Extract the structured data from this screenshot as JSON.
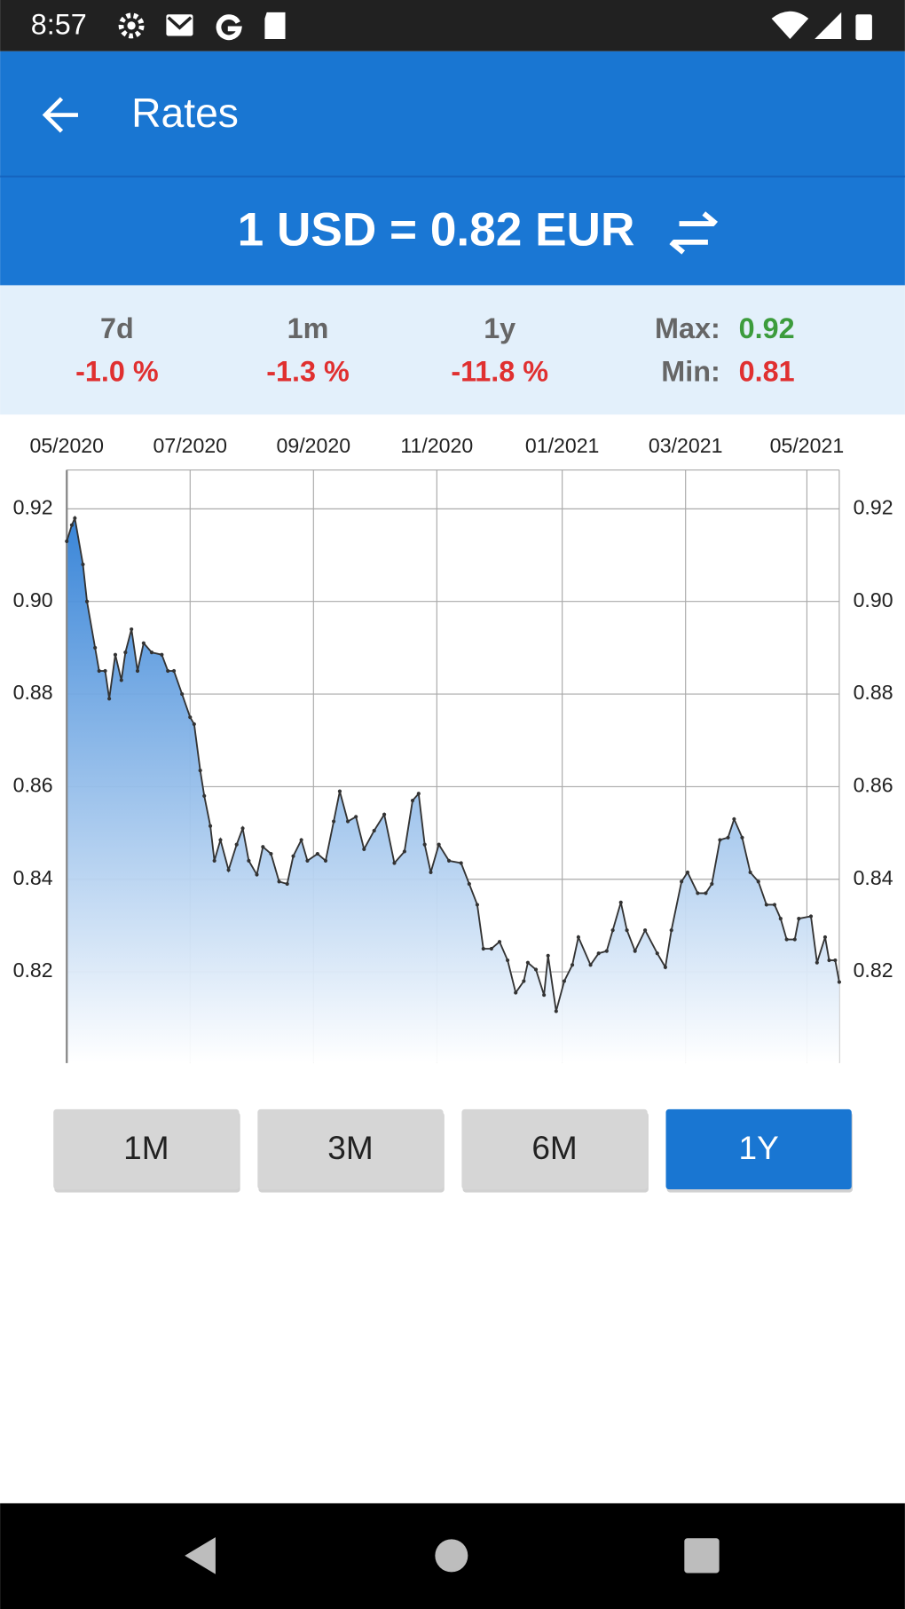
{
  "status_bar": {
    "time": "8:57"
  },
  "app_bar": {
    "title": "Rates"
  },
  "rate": {
    "text": "1 USD = 0.82 EUR"
  },
  "stats": {
    "periods": [
      {
        "label": "7d",
        "change": "-1.0 %"
      },
      {
        "label": "1m",
        "change": "-1.3 %"
      },
      {
        "label": "1y",
        "change": "-11.8 %"
      }
    ],
    "max_label": "Max:",
    "max_value": "0.92",
    "min_label": "Min:",
    "min_value": "0.81"
  },
  "buttons": [
    "1M",
    "3M",
    "6M",
    "1Y"
  ],
  "chart_data": {
    "type": "area",
    "line_color": "#333333",
    "fill_color": "#3a86d8",
    "grid": true,
    "x": [
      0,
      2.5,
      4,
      8,
      10,
      14,
      16,
      19,
      21,
      24,
      27,
      29,
      32,
      35,
      38,
      42,
      47,
      50,
      53,
      57,
      61,
      63,
      66,
      68,
      71,
      73,
      76,
      80,
      84,
      87,
      90,
      94,
      97,
      101,
      105,
      109,
      112,
      116,
      119,
      124,
      128,
      132,
      135,
      139,
      143,
      147,
      152,
      157,
      162,
      167,
      171,
      174,
      177,
      180,
      184,
      189,
      195,
      199,
      203,
      206,
      210,
      214,
      218,
      222,
      226,
      228,
      232,
      236,
      238,
      242,
      246,
      250,
      253,
      259,
      263,
      267,
      270,
      274,
      277,
      281,
      286,
      292,
      296,
      299,
      304,
      307,
      312,
      316,
      319,
      323,
      327,
      330,
      334,
      338,
      342,
      346,
      350,
      353,
      356,
      360,
      362,
      368,
      371,
      375,
      377,
      380,
      382
    ],
    "values": [
      0.913,
      0.9165,
      0.918,
      0.908,
      0.9,
      0.89,
      0.885,
      0.885,
      0.879,
      0.8885,
      0.883,
      0.889,
      0.894,
      0.885,
      0.891,
      0.889,
      0.8885,
      0.885,
      0.885,
      0.88,
      0.875,
      0.8735,
      0.8635,
      0.858,
      0.8515,
      0.844,
      0.8485,
      0.842,
      0.8475,
      0.851,
      0.844,
      0.841,
      0.847,
      0.8455,
      0.8395,
      0.839,
      0.845,
      0.8485,
      0.844,
      0.8455,
      0.844,
      0.8525,
      0.859,
      0.8525,
      0.8535,
      0.8465,
      0.8505,
      0.854,
      0.8435,
      0.846,
      0.857,
      0.8585,
      0.8475,
      0.8415,
      0.8475,
      0.844,
      0.8435,
      0.839,
      0.8345,
      0.825,
      0.825,
      0.8265,
      0.8225,
      0.8155,
      0.818,
      0.822,
      0.8205,
      0.815,
      0.8235,
      0.8115,
      0.818,
      0.8215,
      0.8275,
      0.8215,
      0.824,
      0.8245,
      0.829,
      0.835,
      0.829,
      0.8245,
      0.829,
      0.824,
      0.821,
      0.829,
      0.8395,
      0.8415,
      0.837,
      0.837,
      0.839,
      0.8485,
      0.849,
      0.853,
      0.849,
      0.8415,
      0.8395,
      0.8345,
      0.8345,
      0.8315,
      0.827,
      0.827,
      0.8315,
      0.832,
      0.822,
      0.8275,
      0.8225,
      0.8225,
      0.8178
    ],
    "xlim": [
      0,
      382
    ],
    "xticks": [
      {
        "value": 0,
        "label": "05/2020"
      },
      {
        "value": 61,
        "label": "07/2020"
      },
      {
        "value": 122,
        "label": "09/2020"
      },
      {
        "value": 183,
        "label": "11/2020"
      },
      {
        "value": 245,
        "label": "01/2021"
      },
      {
        "value": 306,
        "label": "03/2021"
      },
      {
        "value": 366,
        "label": "05/2021"
      }
    ],
    "ylim": [
      0.8003,
      0.9284
    ],
    "yticks": [
      0.82,
      0.84,
      0.86,
      0.88,
      {
        "value": 0.9,
        "label": "0.90"
      },
      0.92
    ]
  }
}
